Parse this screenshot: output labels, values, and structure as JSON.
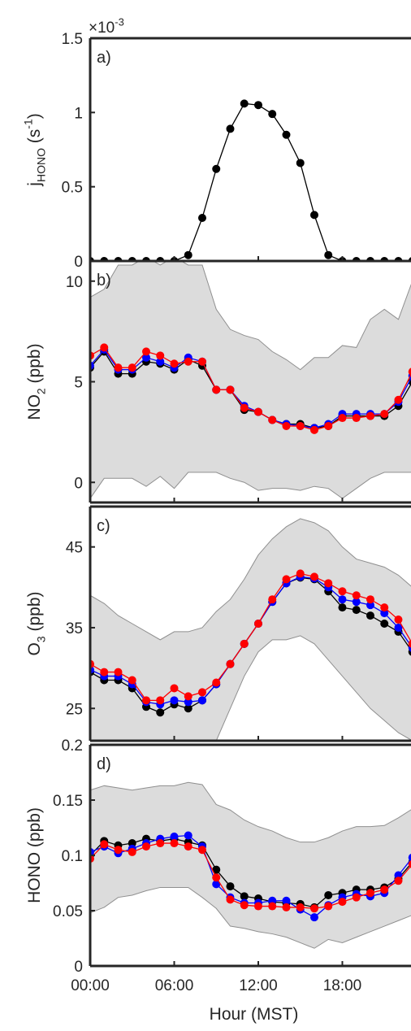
{
  "chart_data": [
    {
      "type": "line",
      "panel_label": "a)",
      "ylabel": "j_HONO (s^-1)",
      "ylim": [
        0,
        1.5
      ],
      "yticks": [
        "0",
        "0.5",
        "1",
        "1.5"
      ],
      "y_multiplier": "×10^-3",
      "x": [
        0,
        1,
        2,
        3,
        4,
        5,
        6,
        7,
        8,
        9,
        10,
        11,
        12,
        13,
        14,
        15,
        16,
        17,
        18,
        19,
        20,
        21,
        22,
        23
      ],
      "series": [
        {
          "color": "#000000",
          "values": [
            0,
            0,
            0,
            0,
            0,
            0,
            0,
            0.04,
            0.29,
            0.62,
            0.89,
            1.06,
            1.05,
            0.99,
            0.85,
            0.66,
            0.31,
            0.04,
            0,
            0,
            0,
            0,
            0,
            0
          ]
        }
      ]
    },
    {
      "type": "line",
      "panel_label": "b)",
      "ylabel": "NO_2 (ppb)",
      "ylim": [
        -1,
        11
      ],
      "yticks": [
        "0",
        "5",
        "10"
      ],
      "x": [
        0,
        1,
        2,
        3,
        4,
        5,
        6,
        7,
        8,
        9,
        10,
        11,
        12,
        13,
        14,
        15,
        16,
        17,
        18,
        19,
        20,
        21,
        22,
        23
      ],
      "band": {
        "lower": [
          -0.8,
          0.2,
          0.2,
          0.2,
          -0.2,
          0.3,
          -0.3,
          0.5,
          0.5,
          0.5,
          0.2,
          0,
          -0.4,
          -0.3,
          -0.3,
          -0.4,
          -0.2,
          -0.3,
          -0.8,
          -0.3,
          0.2,
          0.5,
          0.5,
          0.5
        ],
        "upper": [
          9.2,
          9.6,
          10.8,
          10.8,
          11.2,
          10.8,
          11.2,
          10.8,
          10.8,
          8.6,
          7.6,
          7.3,
          7.1,
          6.5,
          6.1,
          5.6,
          6.2,
          6.2,
          6.8,
          6.7,
          8.1,
          8.6,
          8.1,
          10.0
        ]
      },
      "series": [
        {
          "color": "#000000",
          "values": [
            5.7,
            6.5,
            5.4,
            5.4,
            6.0,
            5.9,
            5.6,
            6.1,
            5.8,
            4.6,
            4.6,
            3.6,
            3.5,
            3.1,
            2.9,
            2.9,
            2.7,
            2.8,
            3.3,
            3.3,
            3.3,
            3.3,
            3.8,
            5.0
          ]
        },
        {
          "color": "#0000ff",
          "values": [
            5.8,
            6.6,
            5.6,
            5.6,
            6.2,
            6.0,
            5.7,
            6.2,
            6.0,
            4.6,
            4.6,
            3.8,
            3.5,
            3.1,
            2.9,
            2.8,
            2.7,
            2.9,
            3.4,
            3.4,
            3.4,
            3.4,
            4.0,
            5.3
          ]
        },
        {
          "color": "#ff0000",
          "values": [
            6.3,
            6.7,
            5.7,
            5.7,
            6.5,
            6.3,
            5.9,
            6.0,
            6.0,
            4.6,
            4.6,
            3.7,
            3.5,
            3.1,
            2.8,
            2.8,
            2.6,
            2.8,
            3.2,
            3.2,
            3.3,
            3.4,
            4.1,
            5.5
          ]
        }
      ]
    },
    {
      "type": "line",
      "panel_label": "c)",
      "ylabel": "O_3 (ppb)",
      "ylim": [
        21,
        50
      ],
      "yticks": [
        "25",
        "35",
        "45"
      ],
      "x": [
        0,
        1,
        2,
        3,
        4,
        5,
        6,
        7,
        8,
        9,
        10,
        11,
        12,
        13,
        14,
        15,
        16,
        17,
        18,
        19,
        20,
        21,
        22,
        23
      ],
      "band": {
        "lower": [
          21,
          21,
          21,
          21,
          21,
          21,
          21,
          21,
          21,
          21,
          25,
          29,
          32,
          33.5,
          33.5,
          34,
          33,
          31,
          29,
          27,
          25,
          23.5,
          22,
          21
        ],
        "upper": [
          39,
          38,
          36.5,
          35.5,
          34.5,
          33.5,
          34.5,
          34.5,
          35,
          37,
          38.5,
          41,
          44,
          46,
          47.5,
          48.5,
          48,
          47,
          45,
          43.5,
          43,
          42.5,
          41.5,
          40
        ]
      },
      "series": [
        {
          "color": "#000000",
          "values": [
            29.5,
            28.5,
            28.5,
            27.5,
            25.2,
            24.5,
            25.5,
            25.0,
            26.0,
            28.0,
            30.5,
            33.0,
            35.5,
            38.2,
            40.5,
            41.2,
            41.0,
            39.5,
            37.5,
            37.2,
            36.5,
            35.5,
            34.5,
            32.0
          ]
        },
        {
          "color": "#0000ff",
          "values": [
            29.8,
            29.0,
            29.0,
            28.0,
            25.8,
            25.5,
            26.0,
            25.8,
            26.0,
            28.0,
            30.5,
            33.0,
            35.5,
            38.2,
            40.5,
            41.3,
            41.1,
            40.0,
            38.5,
            38.2,
            37.8,
            36.8,
            35.0,
            32.5
          ]
        },
        {
          "color": "#ff0000",
          "values": [
            30.5,
            29.5,
            29.5,
            28.5,
            26.0,
            26.0,
            27.5,
            26.5,
            27.0,
            28.2,
            30.5,
            33.0,
            35.5,
            38.5,
            41.0,
            41.7,
            41.3,
            40.5,
            39.5,
            39.0,
            38.5,
            37.5,
            36.0,
            33.0
          ]
        }
      ]
    },
    {
      "type": "line",
      "panel_label": "d)",
      "ylabel": "HONO (ppb)",
      "ylim": [
        0,
        0.2
      ],
      "yticks": [
        "0",
        "0.05",
        "0.1",
        "0.15",
        "0.2"
      ],
      "xlabel": "Hour (MST)",
      "xticks": [
        "00:00",
        "06:00",
        "12:00",
        "18:00"
      ],
      "x": [
        0,
        1,
        2,
        3,
        4,
        5,
        6,
        7,
        8,
        9,
        10,
        11,
        12,
        13,
        14,
        15,
        16,
        17,
        18,
        19,
        20,
        21,
        22,
        23
      ],
      "band": {
        "lower": [
          0.048,
          0.053,
          0.062,
          0.064,
          0.068,
          0.071,
          0.071,
          0.071,
          0.062,
          0.052,
          0.036,
          0.034,
          0.031,
          0.029,
          0.026,
          0.021,
          0.016,
          0.024,
          0.021,
          0.026,
          0.031,
          0.036,
          0.041,
          0.046
        ],
        "upper": [
          0.159,
          0.163,
          0.161,
          0.159,
          0.161,
          0.163,
          0.163,
          0.166,
          0.164,
          0.146,
          0.141,
          0.132,
          0.126,
          0.122,
          0.116,
          0.112,
          0.112,
          0.116,
          0.122,
          0.126,
          0.126,
          0.127,
          0.134,
          0.142
        ]
      },
      "series": [
        {
          "color": "#000000",
          "values": [
            0.1,
            0.113,
            0.109,
            0.111,
            0.115,
            0.113,
            0.115,
            0.112,
            0.109,
            0.087,
            0.072,
            0.063,
            0.061,
            0.058,
            0.057,
            0.056,
            0.053,
            0.064,
            0.066,
            0.069,
            0.069,
            0.071,
            0.079,
            0.094
          ]
        },
        {
          "color": "#0000ff",
          "values": [
            0.103,
            0.108,
            0.102,
            0.106,
            0.111,
            0.115,
            0.117,
            0.118,
            0.108,
            0.074,
            0.062,
            0.057,
            0.057,
            0.059,
            0.059,
            0.051,
            0.044,
            0.055,
            0.062,
            0.065,
            0.063,
            0.066,
            0.082,
            0.098
          ]
        },
        {
          "color": "#ff0000",
          "values": [
            0.097,
            0.11,
            0.105,
            0.103,
            0.108,
            0.111,
            0.111,
            0.108,
            0.105,
            0.08,
            0.06,
            0.055,
            0.054,
            0.054,
            0.053,
            0.053,
            0.052,
            0.054,
            0.058,
            0.062,
            0.066,
            0.069,
            0.077,
            0.092
          ]
        }
      ]
    }
  ]
}
